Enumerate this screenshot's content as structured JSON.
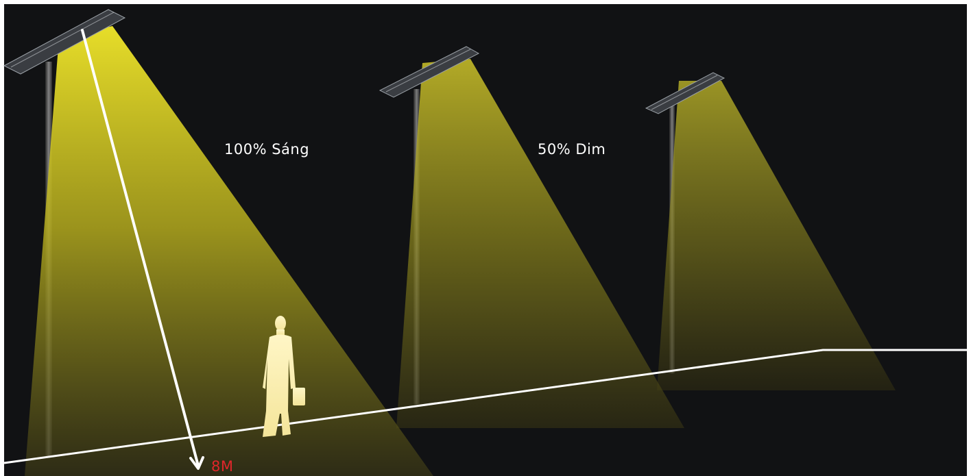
{
  "labels": {
    "bright": "100% Sáng",
    "dim": "50% Dim",
    "height": "8M"
  },
  "colors": {
    "background": "#111214",
    "light": "#e6dc2c",
    "ground_line": "#ffffff",
    "height_label": "#e0262b",
    "person": "#fff3b0"
  }
}
